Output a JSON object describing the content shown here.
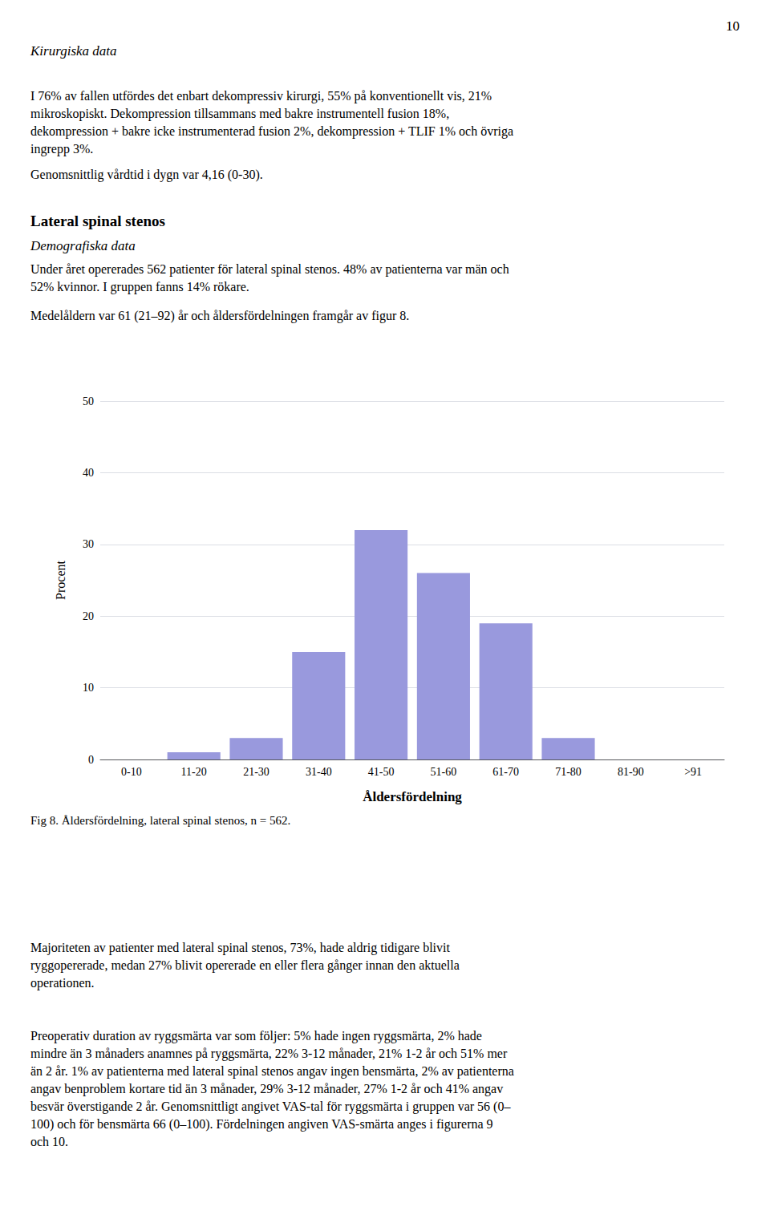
{
  "page_number": "10",
  "text_blocks": [
    "Kirurgiska data",
    "I 76% av fallen utfördes det enbart dekompressiv kirurgi, 55% på konventionellt vis, 21%\nmikroskopiskt. Dekompression tillsammans med bakre instrumentell fusion 18%,\ndekompression + bakre icke instrumenterad fusion 2%, dekompression + TLIF 1% och övriga\ningrepp 3%.",
    "Genomsnittlig vårdtid i dygn var 4,16 (0-30).",
    "Lateral spinal stenos",
    "Demografiska data",
    "Under året opererades 562 patienter för lateral spinal stenos. 48% av patienterna var män och\n52% kvinnor. I gruppen fanns 14% rökare.",
    "Medelåldern var 61 (21–92) år och åldersfördelningen framgår av figur 8.",
    "Majoriteten av patienter med lateral spinal stenos, 73%, hade aldrig tidigare blivit\nryggopererade, medan 27% blivit opererade en eller flera gånger innan den aktuella\noperationen.",
    "Preoperativ duration av ryggsmärta var som följer: 5% hade ingen ryggsmärta, 2% hade\nmindre än 3 månaders anamnes på ryggsmärta, 22% 3-12 månader, 21% 1-2 år och 51% mer\nän 2 år. 1% av patienterna med lateral spinal stenos angav ingen bensmärta, 2% av patienterna\nangav benproblem kortare tid än 3 månader, 29% 3-12 månader, 27% 1-2 år och 41% angav\nbesvär överstigande 2 år. Genomsnittligt angivet VAS-tal för ryggsmärta i gruppen var 56 (0–\n100) och för bensmärta 66 (0–100). Fördelningen angiven VAS-smärta anges i figurerna 9\noch 10."
  ],
  "chart_data": {
    "type": "bar",
    "title": "Åldersfördelning",
    "ylabel": "Procent",
    "categories": [
      "0-10",
      "11-20",
      "21-30",
      "31-40",
      "41-50",
      "51-60",
      "61-70",
      "71-80",
      "81-90",
      ">91"
    ],
    "values": [
      0,
      1,
      3,
      15,
      32,
      26,
      19,
      3,
      0,
      0
    ],
    "color": "#9999dd",
    "ylim": [
      0,
      50
    ],
    "yticks": [
      0,
      10,
      20,
      30,
      40,
      50
    ],
    "grid": true,
    "annotations": [
      "Fig 8. Åldersfördelning, lateral spinal stenos, n = 562."
    ]
  }
}
